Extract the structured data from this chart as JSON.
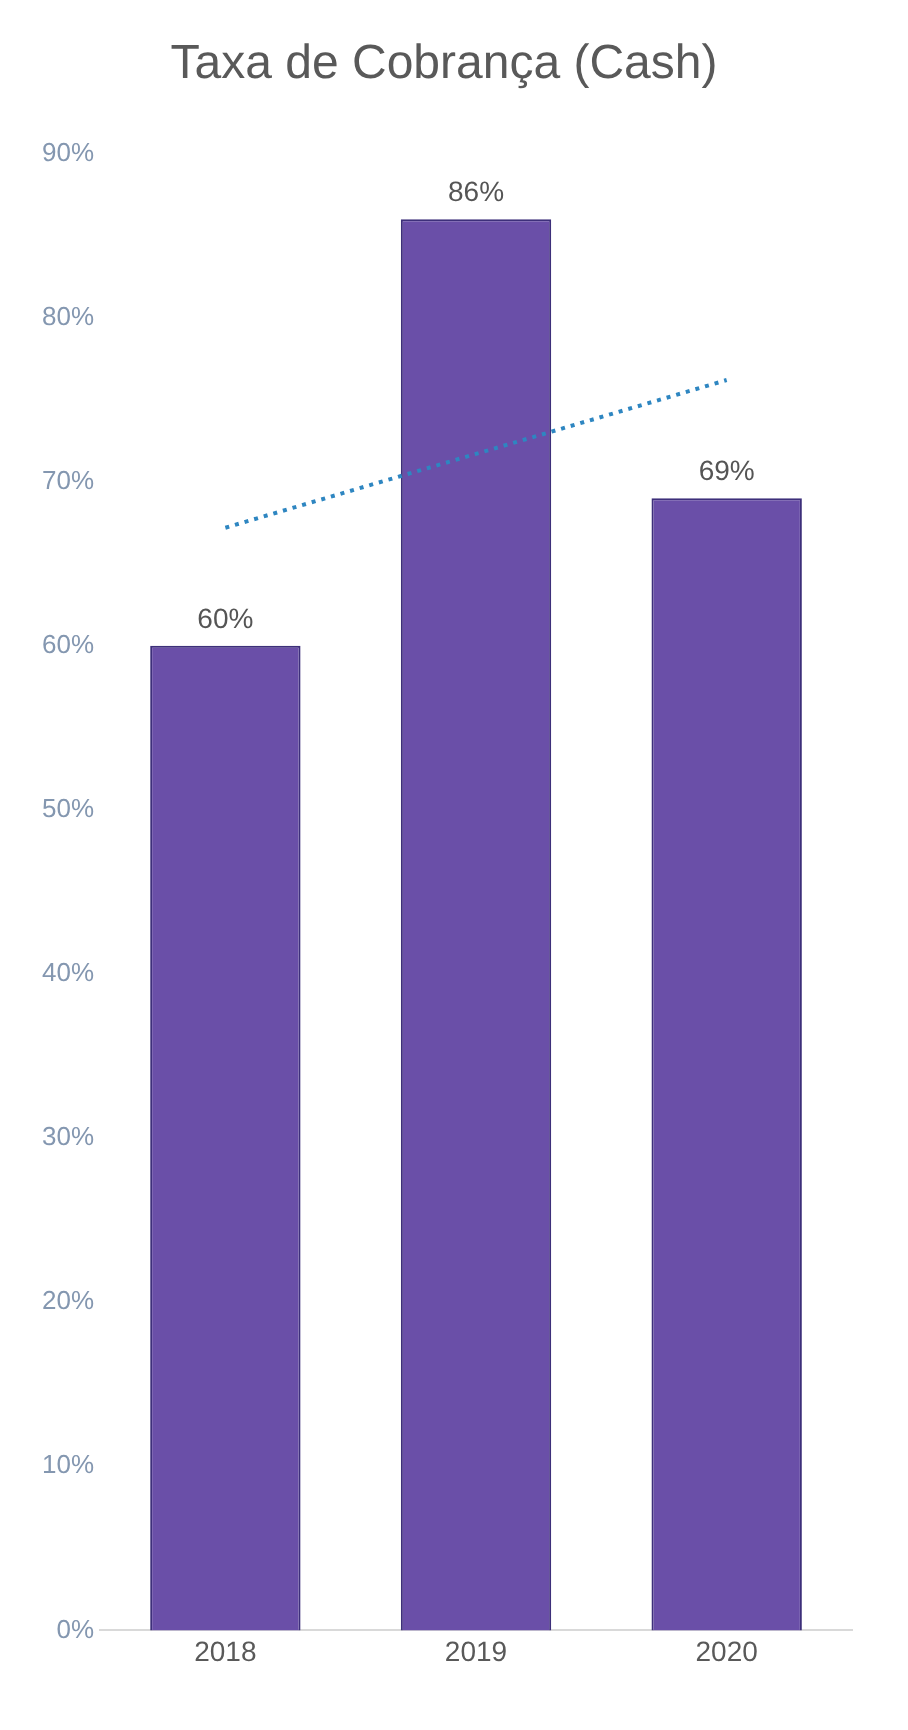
{
  "chart_data": {
    "type": "bar",
    "title": "Taxa de Cobrança (Cash)",
    "categories": [
      "2018",
      "2019",
      "2020"
    ],
    "series": [
      {
        "color": "#6a4fa8",
        "values": [
          60,
          86,
          69
        ],
        "value_labels": [
          "60%",
          "86%",
          "69%"
        ]
      },
      {
        "type": "line",
        "color": "#2e86c1",
        "values": [
          67.2,
          71.7,
          76.2
        ],
        "line_style": "dotted",
        "marker": "none"
      }
    ],
    "ylim": [
      0,
      90
    ],
    "yticks": [
      {
        "value": 0,
        "label": "0%"
      },
      {
        "value": 10,
        "label": "10%"
      },
      {
        "value": 20,
        "label": "20%"
      },
      {
        "value": 30,
        "label": "30%"
      },
      {
        "value": 40,
        "label": "40%"
      },
      {
        "value": 50,
        "label": "50%"
      },
      {
        "value": 60,
        "label": "60%"
      },
      {
        "value": 70,
        "label": "70%"
      },
      {
        "value": 80,
        "label": "80%"
      },
      {
        "value": 90,
        "label": "90%"
      }
    ],
    "grid": false,
    "legend": false
  }
}
